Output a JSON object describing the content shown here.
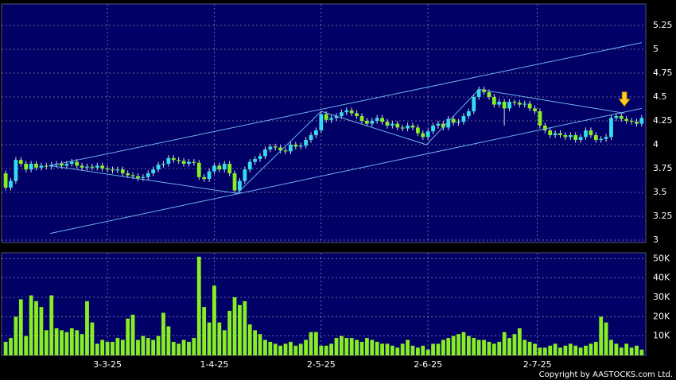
{
  "chart_data": [
    {
      "type": "candlestick",
      "xlim": [
        -0.8,
        125.8
      ],
      "ylim": [
        2.975,
        5.475
      ],
      "yticks": [
        3,
        3.25,
        3.5,
        3.75,
        4,
        4.25,
        4.5,
        4.75,
        5,
        5.25
      ],
      "up_color": "#33ddee",
      "down_color": "#88ee22",
      "grid": true,
      "open": [
        3.7,
        3.55,
        3.62,
        3.84,
        3.8,
        3.74,
        3.8,
        3.76,
        3.78,
        3.77,
        3.79,
        3.8,
        3.78,
        3.8,
        3.82,
        3.78,
        3.76,
        3.77,
        3.76,
        3.78,
        3.75,
        3.74,
        3.73,
        3.74,
        3.7,
        3.68,
        3.67,
        3.65,
        3.66,
        3.7,
        3.74,
        3.79,
        3.8,
        3.86,
        3.84,
        3.83,
        3.8,
        3.82,
        3.81,
        3.66,
        3.64,
        3.72,
        3.78,
        3.74,
        3.8,
        3.7,
        3.52,
        3.62,
        3.74,
        3.82,
        3.85,
        3.88,
        3.95,
        3.98,
        3.97,
        3.94,
        3.93,
        4.0,
        3.98,
        3.99,
        4.05,
        4.1,
        4.15,
        4.32,
        4.26,
        4.28,
        4.3,
        4.34,
        4.36,
        4.33,
        4.3,
        4.25,
        4.22,
        4.25,
        4.28,
        4.24,
        4.2,
        4.22,
        4.18,
        4.17,
        4.2,
        4.18,
        4.12,
        4.08,
        4.14,
        4.2,
        4.22,
        4.18,
        4.27,
        4.23,
        4.24,
        4.3,
        4.35,
        4.5,
        4.58,
        4.55,
        4.5,
        4.42,
        4.45,
        4.38,
        4.45,
        4.44,
        4.42,
        4.43,
        4.38,
        4.35,
        4.2,
        4.15,
        4.1,
        4.12,
        4.1,
        4.08,
        4.1,
        4.05,
        4.08,
        4.15,
        4.1,
        4.05,
        4.06,
        4.08,
        4.28,
        4.3,
        4.27,
        4.25,
        4.24,
        4.22
      ],
      "close": [
        3.55,
        3.62,
        3.84,
        3.8,
        3.74,
        3.8,
        3.76,
        3.78,
        3.77,
        3.79,
        3.8,
        3.78,
        3.8,
        3.82,
        3.78,
        3.76,
        3.77,
        3.76,
        3.78,
        3.75,
        3.74,
        3.73,
        3.74,
        3.7,
        3.68,
        3.67,
        3.65,
        3.66,
        3.7,
        3.74,
        3.79,
        3.8,
        3.86,
        3.84,
        3.83,
        3.8,
        3.82,
        3.81,
        3.66,
        3.64,
        3.72,
        3.78,
        3.74,
        3.8,
        3.7,
        3.52,
        3.62,
        3.74,
        3.82,
        3.85,
        3.88,
        3.95,
        3.98,
        3.97,
        3.94,
        3.93,
        4.0,
        3.98,
        3.99,
        4.05,
        4.1,
        4.15,
        4.32,
        4.26,
        4.28,
        4.3,
        4.34,
        4.36,
        4.33,
        4.3,
        4.25,
        4.22,
        4.25,
        4.28,
        4.24,
        4.2,
        4.22,
        4.18,
        4.17,
        4.2,
        4.18,
        4.12,
        4.08,
        4.14,
        4.2,
        4.22,
        4.18,
        4.27,
        4.23,
        4.24,
        4.3,
        4.35,
        4.5,
        4.58,
        4.55,
        4.5,
        4.42,
        4.45,
        4.38,
        4.45,
        4.44,
        4.42,
        4.43,
        4.38,
        4.35,
        4.2,
        4.15,
        4.1,
        4.12,
        4.1,
        4.08,
        4.1,
        4.05,
        4.08,
        4.15,
        4.1,
        4.05,
        4.06,
        4.08,
        4.28,
        4.3,
        4.27,
        4.25,
        4.24,
        4.22,
        4.28
      ],
      "high": [
        3.73,
        3.65,
        3.87,
        3.87,
        3.83,
        3.83,
        3.83,
        3.81,
        3.81,
        3.82,
        3.83,
        3.83,
        3.83,
        3.85,
        3.85,
        3.81,
        3.8,
        3.8,
        3.81,
        3.81,
        3.78,
        3.77,
        3.77,
        3.77,
        3.73,
        3.71,
        3.7,
        3.69,
        3.73,
        3.77,
        3.82,
        3.83,
        3.89,
        3.89,
        3.87,
        3.86,
        3.85,
        3.85,
        3.84,
        3.69,
        3.75,
        3.81,
        3.81,
        3.83,
        3.83,
        3.73,
        3.65,
        3.77,
        3.85,
        3.88,
        3.91,
        3.98,
        4.01,
        4.01,
        4.0,
        3.97,
        4.03,
        4.03,
        4.02,
        4.08,
        4.13,
        4.18,
        4.35,
        4.35,
        4.31,
        4.33,
        4.37,
        4.39,
        4.39,
        4.36,
        4.33,
        4.28,
        4.28,
        4.31,
        4.31,
        4.27,
        4.25,
        4.25,
        4.21,
        4.23,
        4.23,
        4.21,
        4.15,
        4.17,
        4.23,
        4.25,
        4.25,
        4.3,
        4.3,
        4.27,
        4.33,
        4.38,
        4.53,
        4.61,
        4.61,
        4.58,
        4.53,
        4.48,
        4.48,
        4.48,
        4.47,
        4.47,
        4.46,
        4.46,
        4.41,
        4.38,
        4.23,
        4.18,
        4.15,
        4.15,
        4.13,
        4.13,
        4.13,
        4.11,
        4.18,
        4.18,
        4.13,
        4.09,
        4.11,
        4.31,
        4.33,
        4.33,
        4.3,
        4.28,
        4.27,
        4.31
      ],
      "low": [
        3.52,
        3.52,
        3.59,
        3.77,
        3.71,
        3.71,
        3.73,
        3.73,
        3.74,
        3.74,
        3.76,
        3.75,
        3.75,
        3.77,
        3.75,
        3.73,
        3.73,
        3.73,
        3.73,
        3.72,
        3.71,
        3.7,
        3.7,
        3.67,
        3.65,
        3.64,
        3.62,
        3.62,
        3.63,
        3.67,
        3.71,
        3.76,
        3.77,
        3.81,
        3.8,
        3.77,
        3.77,
        3.78,
        3.63,
        3.61,
        3.61,
        3.69,
        3.71,
        3.71,
        3.67,
        3.49,
        3.49,
        3.59,
        3.71,
        3.79,
        3.82,
        3.85,
        3.92,
        3.94,
        3.91,
        3.9,
        3.9,
        3.95,
        3.95,
        3.96,
        4.02,
        4.07,
        4.12,
        4.23,
        4.23,
        4.25,
        4.27,
        4.31,
        4.3,
        4.27,
        4.22,
        4.19,
        4.19,
        4.22,
        4.21,
        4.17,
        4.17,
        4.15,
        4.14,
        4.14,
        4.15,
        4.09,
        4.05,
        4.05,
        4.11,
        4.17,
        4.15,
        4.15,
        4.2,
        4.2,
        4.21,
        4.27,
        4.32,
        4.47,
        4.52,
        4.47,
        4.39,
        4.39,
        4.2,
        4.35,
        4.41,
        4.39,
        4.39,
        4.35,
        4.32,
        4.17,
        4.12,
        4.07,
        4.07,
        4.07,
        4.05,
        4.05,
        4.02,
        4.02,
        4.05,
        4.07,
        4.02,
        4.02,
        4.03,
        4.05,
        4.25,
        4.24,
        4.22,
        4.21,
        4.19,
        4.19
      ],
      "lines": [
        {
          "color": "#6fb0e8",
          "points": [
            [
              8.75,
              3.78
            ],
            [
              125,
              5.07
            ]
          ]
        },
        {
          "color": "#6fb0e8",
          "points": [
            [
              8.75,
              3.07
            ],
            [
              125,
              4.38
            ]
          ]
        },
        {
          "color": "#6fb0e8",
          "points": [
            [
              8.75,
              3.78
            ],
            [
              45.5,
              3.49
            ],
            [
              62,
              4.35
            ],
            [
              82.7,
              4.0
            ],
            [
              93,
              4.58
            ],
            [
              121.6,
              4.33
            ]
          ]
        }
      ],
      "marker": {
        "x": 121.6,
        "y": 4.47,
        "color": "#ffcc22"
      }
    },
    {
      "type": "bar",
      "xlim": [
        -0.8,
        125.8
      ],
      "ylim": [
        0,
        53000
      ],
      "color": "#88ee22",
      "grid": true,
      "yticks": [
        {
          "value": 10000,
          "label": "10K"
        },
        {
          "value": 20000,
          "label": "20K"
        },
        {
          "value": 30000,
          "label": "30K"
        },
        {
          "value": 40000,
          "label": "40K"
        },
        {
          "value": 50000,
          "label": "50K"
        }
      ],
      "xticks": [
        {
          "value": 20,
          "label": "3-3-25"
        },
        {
          "value": 41,
          "label": "1-4-25"
        },
        {
          "value": 62,
          "label": "2-5-25"
        },
        {
          "value": 83,
          "label": "2-6-25"
        },
        {
          "value": 104.5,
          "label": "2-7-25"
        }
      ],
      "values": [
        7000,
        9000,
        20000,
        29000,
        10000,
        31000,
        28000,
        25000,
        13000,
        31000,
        14000,
        13000,
        12000,
        14000,
        13000,
        11000,
        28000,
        17000,
        6000,
        8000,
        7000,
        7000,
        9000,
        8000,
        19000,
        21000,
        8000,
        10000,
        9000,
        8000,
        10000,
        22000,
        15000,
        7000,
        6000,
        8000,
        7000,
        9000,
        51000,
        25000,
        17000,
        36000,
        17000,
        13000,
        23000,
        30000,
        26000,
        28000,
        16000,
        13000,
        11000,
        8000,
        7000,
        6000,
        5000,
        6000,
        7000,
        5000,
        6000,
        8000,
        12000,
        12000,
        5000,
        5000,
        6000,
        9000,
        10000,
        9000,
        9000,
        8000,
        7000,
        9000,
        8000,
        7000,
        6000,
        6000,
        5000,
        4000,
        6000,
        8000,
        5000,
        4000,
        5000,
        3000,
        6000,
        6000,
        8000,
        9000,
        10000,
        11000,
        12000,
        10000,
        9000,
        8000,
        8000,
        7000,
        6000,
        7000,
        12000,
        9000,
        11000,
        14000,
        8000,
        7000,
        6000,
        4000,
        4000,
        5000,
        6000,
        4000,
        5000,
        6000,
        5000,
        4000,
        5000,
        6000,
        7000,
        20000,
        17000,
        8000,
        6000,
        4000,
        6000,
        4000,
        5000,
        3000
      ],
      "footer": "Copyright by AASTOCKS.com Ltd."
    }
  ]
}
